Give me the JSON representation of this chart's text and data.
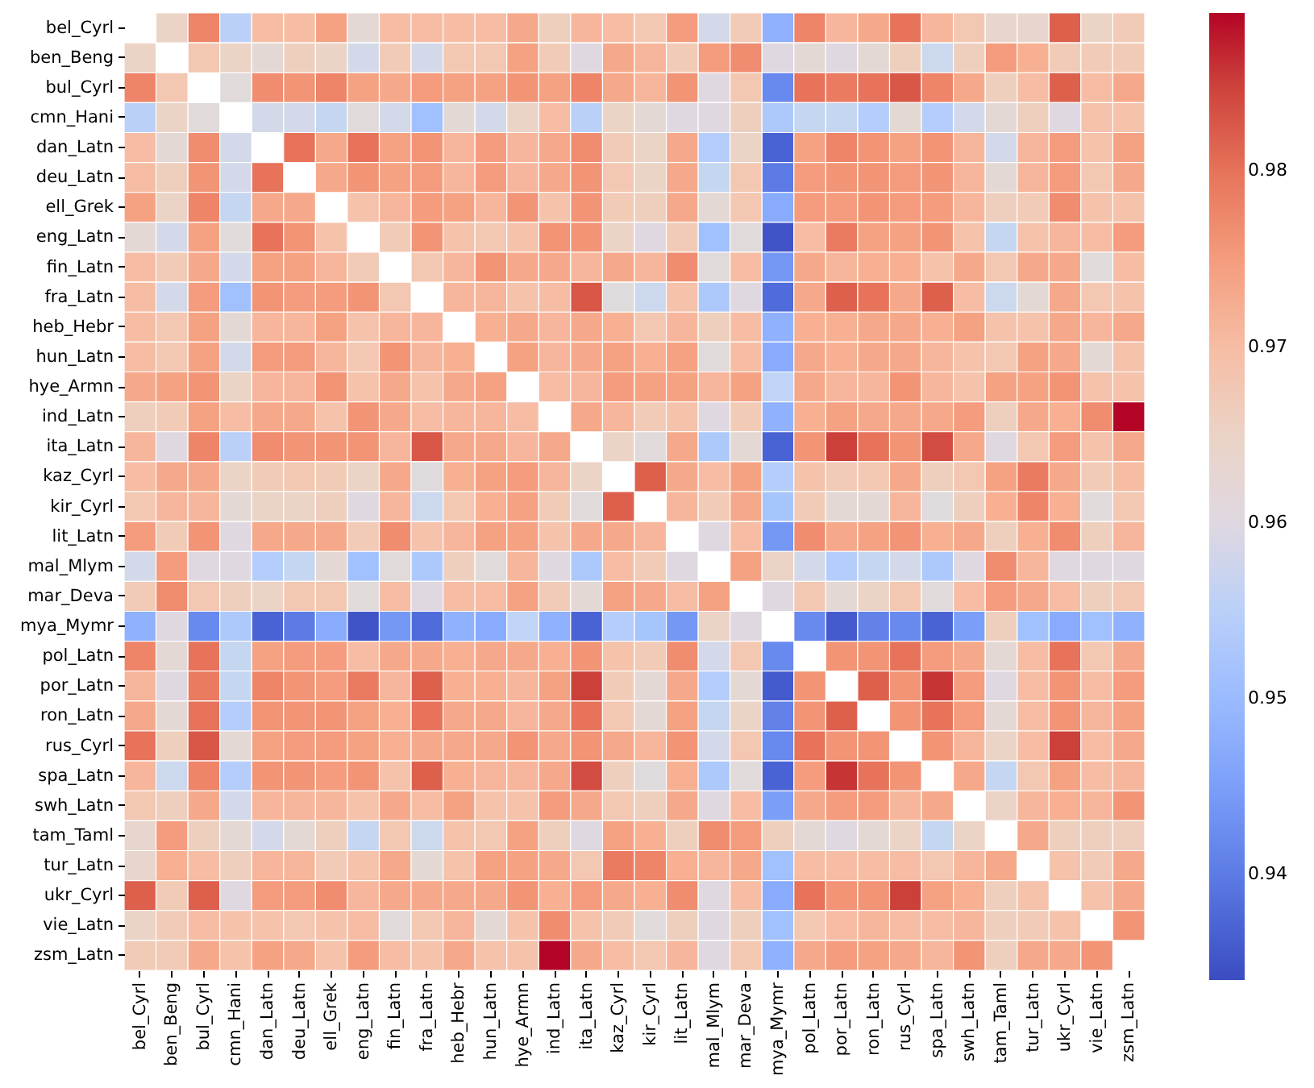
{
  "chart_data": {
    "type": "heatmap",
    "categories": [
      "bel_Cyrl",
      "ben_Beng",
      "bul_Cyrl",
      "cmn_Hani",
      "dan_Latn",
      "deu_Latn",
      "ell_Grek",
      "eng_Latn",
      "fin_Latn",
      "fra_Latn",
      "heb_Hebr",
      "hun_Latn",
      "hye_Armn",
      "ind_Latn",
      "ita_Latn",
      "kaz_Cyrl",
      "kir_Cyrl",
      "lit_Latn",
      "mal_Mlym",
      "mar_Deva",
      "mya_Mymr",
      "pol_Latn",
      "por_Latn",
      "ron_Latn",
      "rus_Cyrl",
      "spa_Latn",
      "swh_Latn",
      "tam_Taml",
      "tur_Latn",
      "ukr_Cyrl",
      "vie_Latn",
      "zsm_Latn"
    ],
    "y_categories": [
      "bel_Cyrl",
      "ben_Beng",
      "bul_Cyrl",
      "cmn_Hani",
      "dan_Latn",
      "deu_Latn",
      "ell_Grek",
      "eng_Latn",
      "fin_Latn",
      "fra_Latn",
      "heb_Hebr",
      "hun_Latn",
      "hye_Armn",
      "ind_Latn",
      "ita_Latn",
      "kaz_Cyrl",
      "kir_Cyrl",
      "lit_Latn",
      "mal_Mlym",
      "mar_Deva",
      "mya_Mymr",
      "pol_Latn",
      "por_Latn",
      "ron_Latn",
      "rus_Cyrl",
      "spa_Latn",
      "swh_Latn",
      "tam_Taml",
      "tur_Latn",
      "ukr_Cyrl",
      "vie_Latn",
      "zsm_Latn"
    ],
    "cells": [
      [
        null,
        0.965,
        0.978,
        0.955,
        0.97,
        0.97,
        0.974,
        0.963,
        0.97,
        0.97,
        0.97,
        0.97,
        0.973,
        0.966,
        0.971,
        0.97,
        0.968,
        0.975,
        0.959,
        0.967,
        0.948,
        0.978,
        0.971,
        0.973,
        0.98,
        0.971,
        0.968,
        0.964,
        0.964,
        0.982,
        0.965,
        0.967
      ],
      [
        0.965,
        null,
        0.968,
        0.965,
        0.963,
        0.966,
        0.965,
        0.959,
        0.967,
        0.959,
        0.968,
        0.968,
        0.974,
        0.967,
        0.96,
        0.973,
        0.971,
        0.967,
        0.975,
        0.977,
        0.96,
        0.963,
        0.96,
        0.963,
        0.966,
        0.958,
        0.966,
        0.975,
        0.972,
        0.967,
        0.967,
        0.967
      ],
      [
        0.978,
        0.968,
        null,
        0.962,
        0.977,
        0.976,
        0.978,
        0.974,
        0.973,
        0.975,
        0.974,
        0.974,
        0.976,
        0.974,
        0.978,
        0.973,
        0.971,
        0.976,
        0.96,
        0.968,
        0.942,
        0.98,
        0.979,
        0.98,
        0.983,
        0.978,
        0.973,
        0.966,
        0.97,
        0.982,
        0.97,
        0.973
      ],
      [
        0.955,
        0.965,
        0.962,
        null,
        0.959,
        0.959,
        0.957,
        0.962,
        0.959,
        0.951,
        0.963,
        0.959,
        0.965,
        0.97,
        0.955,
        0.965,
        0.963,
        0.96,
        0.96,
        0.966,
        0.953,
        0.957,
        0.957,
        0.954,
        0.963,
        0.954,
        0.959,
        0.963,
        0.966,
        0.96,
        0.969,
        0.969
      ],
      [
        0.97,
        0.963,
        0.977,
        0.959,
        null,
        0.98,
        0.973,
        0.98,
        0.974,
        0.976,
        0.971,
        0.975,
        0.971,
        0.973,
        0.977,
        0.967,
        0.965,
        0.973,
        0.954,
        0.965,
        0.937,
        0.974,
        0.978,
        0.976,
        0.974,
        0.976,
        0.971,
        0.959,
        0.971,
        0.975,
        0.969,
        0.974
      ],
      [
        0.97,
        0.966,
        0.976,
        0.959,
        0.98,
        null,
        0.973,
        0.976,
        0.974,
        0.975,
        0.971,
        0.975,
        0.971,
        0.973,
        0.976,
        0.968,
        0.965,
        0.973,
        0.957,
        0.968,
        0.94,
        0.975,
        0.976,
        0.976,
        0.975,
        0.976,
        0.971,
        0.963,
        0.971,
        0.975,
        0.968,
        0.973
      ],
      [
        0.974,
        0.965,
        0.978,
        0.957,
        0.973,
        0.973,
        null,
        0.969,
        0.971,
        0.975,
        0.974,
        0.971,
        0.976,
        0.969,
        0.976,
        0.967,
        0.966,
        0.973,
        0.963,
        0.968,
        0.947,
        0.975,
        0.975,
        0.976,
        0.975,
        0.975,
        0.971,
        0.966,
        0.967,
        0.977,
        0.969,
        0.969
      ],
      [
        0.963,
        0.959,
        0.974,
        0.962,
        0.98,
        0.976,
        0.969,
        null,
        0.967,
        0.976,
        0.969,
        0.968,
        0.969,
        0.976,
        0.976,
        0.965,
        0.96,
        0.967,
        0.951,
        0.962,
        0.935,
        0.97,
        0.979,
        0.974,
        0.974,
        0.976,
        0.969,
        0.957,
        0.969,
        0.971,
        0.97,
        0.975
      ],
      [
        0.97,
        0.967,
        0.973,
        0.959,
        0.974,
        0.974,
        0.971,
        0.967,
        null,
        0.968,
        0.971,
        0.976,
        0.973,
        0.973,
        0.971,
        0.973,
        0.971,
        0.977,
        0.962,
        0.97,
        0.944,
        0.973,
        0.971,
        0.972,
        0.972,
        0.969,
        0.973,
        0.968,
        0.973,
        0.973,
        0.962,
        0.97
      ],
      [
        0.97,
        0.959,
        0.975,
        0.951,
        0.976,
        0.975,
        0.975,
        0.976,
        0.968,
        null,
        0.971,
        0.971,
        0.969,
        0.97,
        0.983,
        0.961,
        0.958,
        0.969,
        0.953,
        0.96,
        0.938,
        0.973,
        0.982,
        0.98,
        0.973,
        0.982,
        0.97,
        0.958,
        0.963,
        0.973,
        0.968,
        0.969
      ],
      [
        0.97,
        0.968,
        0.974,
        0.963,
        0.971,
        0.971,
        0.974,
        0.969,
        0.971,
        0.971,
        null,
        0.972,
        0.973,
        0.971,
        0.973,
        0.972,
        0.968,
        0.971,
        0.966,
        0.97,
        0.948,
        0.972,
        0.972,
        0.973,
        0.973,
        0.972,
        0.974,
        0.969,
        0.969,
        0.973,
        0.971,
        0.973
      ],
      [
        0.97,
        0.968,
        0.974,
        0.959,
        0.975,
        0.975,
        0.971,
        0.968,
        0.976,
        0.971,
        0.972,
        null,
        0.974,
        0.971,
        0.973,
        0.974,
        0.972,
        0.974,
        0.962,
        0.97,
        0.947,
        0.973,
        0.972,
        0.973,
        0.973,
        0.971,
        0.969,
        0.968,
        0.974,
        0.973,
        0.963,
        0.969
      ],
      [
        0.973,
        0.974,
        0.976,
        0.965,
        0.971,
        0.971,
        0.976,
        0.969,
        0.973,
        0.969,
        0.973,
        0.974,
        null,
        0.97,
        0.971,
        0.975,
        0.974,
        0.974,
        0.971,
        0.974,
        0.956,
        0.973,
        0.971,
        0.971,
        0.976,
        0.971,
        0.969,
        0.974,
        0.974,
        0.976,
        0.969,
        0.969
      ],
      [
        0.966,
        0.967,
        0.974,
        0.97,
        0.973,
        0.973,
        0.969,
        0.976,
        0.973,
        0.97,
        0.971,
        0.971,
        0.97,
        null,
        0.973,
        0.971,
        0.967,
        0.969,
        0.96,
        0.967,
        0.948,
        0.972,
        0.974,
        0.973,
        0.973,
        0.973,
        0.975,
        0.966,
        0.973,
        0.972,
        0.977,
        0.989
      ],
      [
        0.971,
        0.96,
        0.978,
        0.955,
        0.977,
        0.976,
        0.976,
        0.976,
        0.971,
        0.983,
        0.973,
        0.973,
        0.971,
        0.973,
        null,
        0.965,
        0.962,
        0.973,
        0.953,
        0.963,
        0.937,
        0.976,
        0.985,
        0.98,
        0.976,
        0.984,
        0.973,
        0.96,
        0.968,
        0.975,
        0.969,
        0.973
      ],
      [
        0.97,
        0.973,
        0.973,
        0.965,
        0.967,
        0.968,
        0.967,
        0.965,
        0.973,
        0.961,
        0.972,
        0.974,
        0.975,
        0.971,
        0.965,
        null,
        0.982,
        0.973,
        0.97,
        0.974,
        0.954,
        0.969,
        0.967,
        0.968,
        0.973,
        0.966,
        0.968,
        0.974,
        0.979,
        0.973,
        0.967,
        0.97
      ],
      [
        0.968,
        0.971,
        0.971,
        0.963,
        0.965,
        0.965,
        0.966,
        0.96,
        0.971,
        0.958,
        0.968,
        0.972,
        0.974,
        0.967,
        0.962,
        0.982,
        null,
        0.971,
        0.967,
        0.973,
        0.952,
        0.967,
        0.963,
        0.963,
        0.971,
        0.961,
        0.966,
        0.972,
        0.978,
        0.972,
        0.962,
        0.968
      ],
      [
        0.975,
        0.967,
        0.976,
        0.96,
        0.973,
        0.973,
        0.973,
        0.967,
        0.977,
        0.969,
        0.971,
        0.974,
        0.974,
        0.969,
        0.973,
        0.973,
        0.971,
        null,
        0.96,
        0.97,
        0.944,
        0.977,
        0.973,
        0.974,
        0.976,
        0.972,
        0.973,
        0.966,
        0.972,
        0.977,
        0.966,
        0.971
      ],
      [
        0.959,
        0.975,
        0.96,
        0.96,
        0.954,
        0.957,
        0.963,
        0.951,
        0.962,
        0.953,
        0.966,
        0.962,
        0.971,
        0.96,
        0.953,
        0.97,
        0.967,
        0.96,
        null,
        0.974,
        0.965,
        0.959,
        0.954,
        0.957,
        0.959,
        0.953,
        0.96,
        0.977,
        0.971,
        0.96,
        0.96,
        0.96
      ],
      [
        0.967,
        0.977,
        0.968,
        0.966,
        0.965,
        0.968,
        0.968,
        0.962,
        0.97,
        0.96,
        0.97,
        0.97,
        0.974,
        0.967,
        0.963,
        0.974,
        0.973,
        0.97,
        0.974,
        null,
        0.96,
        0.968,
        0.963,
        0.965,
        0.968,
        0.962,
        0.97,
        0.975,
        0.973,
        0.97,
        0.966,
        0.968
      ],
      [
        0.948,
        0.96,
        0.942,
        0.953,
        0.937,
        0.94,
        0.947,
        0.935,
        0.944,
        0.938,
        0.948,
        0.947,
        0.956,
        0.948,
        0.937,
        0.954,
        0.952,
        0.944,
        0.965,
        0.96,
        null,
        0.942,
        0.936,
        0.941,
        0.942,
        0.937,
        0.945,
        0.966,
        0.951,
        0.947,
        0.951,
        0.948
      ],
      [
        0.978,
        0.963,
        0.98,
        0.957,
        0.974,
        0.975,
        0.975,
        0.97,
        0.973,
        0.973,
        0.972,
        0.973,
        0.973,
        0.972,
        0.976,
        0.969,
        0.967,
        0.977,
        0.959,
        0.968,
        0.942,
        null,
        0.976,
        0.976,
        0.98,
        0.975,
        0.973,
        0.963,
        0.97,
        0.98,
        0.968,
        0.973
      ],
      [
        0.971,
        0.96,
        0.979,
        0.957,
        0.978,
        0.976,
        0.975,
        0.979,
        0.971,
        0.982,
        0.972,
        0.972,
        0.971,
        0.974,
        0.985,
        0.967,
        0.963,
        0.973,
        0.954,
        0.963,
        0.936,
        0.976,
        null,
        0.982,
        0.976,
        0.986,
        0.975,
        0.96,
        0.97,
        0.976,
        0.97,
        0.975
      ],
      [
        0.973,
        0.963,
        0.98,
        0.954,
        0.976,
        0.976,
        0.976,
        0.974,
        0.972,
        0.98,
        0.973,
        0.973,
        0.971,
        0.973,
        0.98,
        0.968,
        0.963,
        0.974,
        0.957,
        0.965,
        0.941,
        0.976,
        0.982,
        null,
        0.976,
        0.98,
        0.975,
        0.963,
        0.97,
        0.976,
        0.971,
        0.974
      ],
      [
        0.98,
        0.966,
        0.983,
        0.963,
        0.974,
        0.975,
        0.975,
        0.974,
        0.972,
        0.973,
        0.973,
        0.973,
        0.976,
        0.973,
        0.976,
        0.973,
        0.971,
        0.976,
        0.959,
        0.968,
        0.942,
        0.98,
        0.976,
        0.976,
        null,
        0.976,
        0.971,
        0.965,
        0.97,
        0.985,
        0.97,
        0.973
      ],
      [
        0.971,
        0.958,
        0.978,
        0.954,
        0.976,
        0.976,
        0.975,
        0.976,
        0.969,
        0.982,
        0.972,
        0.971,
        0.971,
        0.973,
        0.984,
        0.966,
        0.961,
        0.972,
        0.953,
        0.962,
        0.937,
        0.975,
        0.986,
        0.98,
        0.976,
        null,
        0.973,
        0.957,
        0.968,
        0.974,
        0.97,
        0.971
      ],
      [
        0.968,
        0.966,
        0.973,
        0.959,
        0.971,
        0.971,
        0.971,
        0.969,
        0.973,
        0.97,
        0.974,
        0.969,
        0.969,
        0.975,
        0.973,
        0.968,
        0.966,
        0.973,
        0.96,
        0.97,
        0.945,
        0.973,
        0.975,
        0.975,
        0.971,
        0.973,
        null,
        0.965,
        0.971,
        0.972,
        0.971,
        0.976
      ],
      [
        0.964,
        0.975,
        0.966,
        0.963,
        0.959,
        0.963,
        0.966,
        0.957,
        0.968,
        0.958,
        0.969,
        0.968,
        0.974,
        0.966,
        0.96,
        0.974,
        0.972,
        0.966,
        0.977,
        0.975,
        0.966,
        0.963,
        0.96,
        0.963,
        0.965,
        0.957,
        0.965,
        null,
        0.973,
        0.966,
        0.966,
        0.966
      ],
      [
        0.964,
        0.972,
        0.97,
        0.966,
        0.971,
        0.971,
        0.967,
        0.969,
        0.973,
        0.963,
        0.969,
        0.974,
        0.974,
        0.973,
        0.968,
        0.979,
        0.978,
        0.972,
        0.971,
        0.973,
        0.951,
        0.97,
        0.97,
        0.97,
        0.97,
        0.968,
        0.971,
        0.973,
        null,
        0.969,
        0.967,
        0.973
      ],
      [
        0.982,
        0.967,
        0.982,
        0.96,
        0.975,
        0.975,
        0.977,
        0.971,
        0.973,
        0.973,
        0.973,
        0.973,
        0.976,
        0.972,
        0.975,
        0.973,
        0.972,
        0.977,
        0.96,
        0.97,
        0.947,
        0.98,
        0.976,
        0.976,
        0.985,
        0.974,
        0.972,
        0.966,
        0.969,
        null,
        0.969,
        0.973
      ],
      [
        0.965,
        0.967,
        0.97,
        0.969,
        0.969,
        0.968,
        0.969,
        0.97,
        0.962,
        0.968,
        0.971,
        0.963,
        0.969,
        0.977,
        0.969,
        0.967,
        0.962,
        0.966,
        0.96,
        0.966,
        0.951,
        0.968,
        0.97,
        0.971,
        0.97,
        0.97,
        0.971,
        0.966,
        0.967,
        0.969,
        null,
        0.976
      ],
      [
        0.967,
        0.967,
        0.973,
        0.969,
        0.974,
        0.973,
        0.969,
        0.975,
        0.97,
        0.969,
        0.973,
        0.969,
        0.969,
        0.989,
        0.973,
        0.97,
        0.968,
        0.971,
        0.96,
        0.968,
        0.948,
        0.973,
        0.975,
        0.974,
        0.973,
        0.971,
        0.976,
        0.966,
        0.973,
        0.973,
        0.976,
        null
      ]
    ],
    "clim": [
      0.934,
      0.989
    ],
    "cticks": [
      0.94,
      0.95,
      0.96,
      0.97,
      0.98
    ]
  }
}
